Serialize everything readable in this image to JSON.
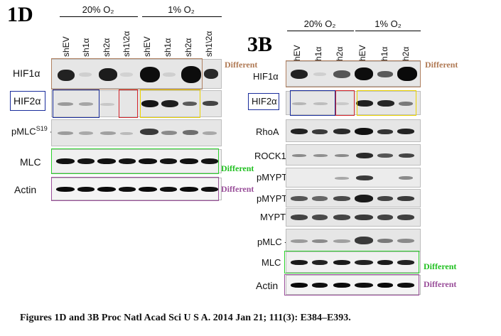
{
  "panel_1d": {
    "label": "1D",
    "groups": [
      "20% O₂",
      "1% O₂"
    ],
    "lanes": [
      "shEV",
      "sh1α",
      "sh2α",
      "sh1\\2α",
      "shEV",
      "sh1α",
      "sh2α",
      "sh1\\2α"
    ],
    "rows": [
      "HIF1α",
      "HIF2α",
      "pMLC",
      "MLC",
      "Actin"
    ],
    "pmlc_superscript": "S19",
    "different_labels": [
      "Different",
      "Different",
      "Different"
    ]
  },
  "panel_3b": {
    "label": "3B",
    "groups": [
      "20% O₂",
      "1% O₂"
    ],
    "lanes": [
      "shEV",
      "sh1α",
      "sh2α",
      "shEV",
      "sh1α",
      "sh2α"
    ],
    "rows": [
      "HIF1α",
      "HIF2α",
      "RhoA",
      "ROCK1",
      "pMYPT",
      "pMYPT",
      "MYPT",
      "pMLC --",
      "MLC",
      "Actin"
    ],
    "different_labels": [
      "Different",
      "Different",
      "Different"
    ]
  },
  "caption": "Figures 1D and 3B Proc Natl Acad Sci U S A. 2014 Jan 21; 111(3): E384–E393.",
  "colors": {
    "brown": "#b08060",
    "blue": "#1a2d9c",
    "red": "#d4242a",
    "yellow": "#ecd400",
    "green": "#2bd12b",
    "purple": "#9a4f9a",
    "diff_brown": "#b07a55",
    "diff_green": "#22c022",
    "diff_purple": "#9a4f9a"
  }
}
